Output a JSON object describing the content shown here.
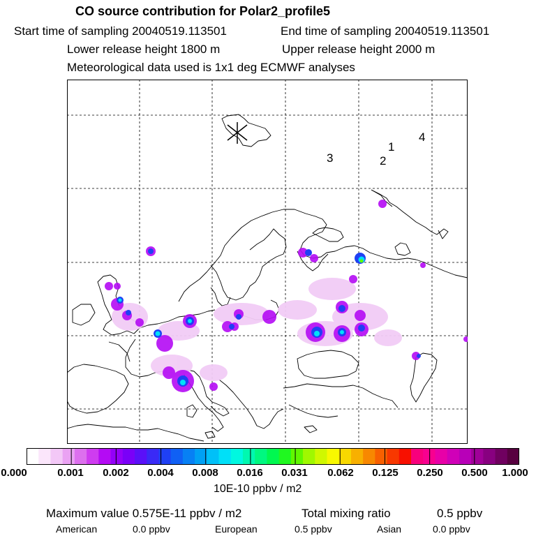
{
  "header": {
    "title": "CO  source contribution for Polar2_profile5",
    "start": "Start time of sampling 20040519.113501",
    "end": "End time of sampling 20040519.113501",
    "lower": "Lower release height 1800 m",
    "upper": "Upper release height 2000 m",
    "meteo": "Meteorological data used is 1x1 deg ECMWF analyses"
  },
  "map": {
    "markers": [
      "1",
      "2",
      "3",
      "4"
    ],
    "symbol": "star-marker"
  },
  "colorbar": {
    "ticks": [
      "0.000",
      "0.001",
      "0.002",
      "0.004",
      "0.008",
      "0.016",
      "0.031",
      "0.062",
      "0.125",
      "0.250",
      "0.500",
      "1.000"
    ],
    "unit": "10E-10 ppbv / m2",
    "colors": [
      "#ffffff",
      "#fbe6fb",
      "#f3c8f7",
      "#eaa2f3",
      "#dd70ee",
      "#cf3cf0",
      "#b40bf4",
      "#9400f8",
      "#7a00f8",
      "#5a10f8",
      "#3a2af6",
      "#1f40f4",
      "#1060f4",
      "#0780f4",
      "#00a0f4",
      "#00c0f8",
      "#00e0f8",
      "#00f8e0",
      "#00f8b0",
      "#00f880",
      "#00f850",
      "#20f820",
      "#60f800",
      "#a0f800",
      "#d0f800",
      "#f8f800",
      "#f8d800",
      "#f8b000",
      "#f88800",
      "#f86000",
      "#f83800",
      "#f81000",
      "#f8007c",
      "#f80090",
      "#e800a8",
      "#d000b8",
      "#b800b8",
      "#a00098",
      "#880080",
      "#700060",
      "#580040"
    ]
  },
  "footer": {
    "max_label": "Maximum value  0.575E-11 ppbv / m2",
    "total_label": "Total mixing ratio",
    "total_value": "0.5 ppbv",
    "american_label": "American",
    "american_value": "0.0 ppbv",
    "european_label": "European",
    "european_value": "0.5 ppbv",
    "asian_label": "Asian",
    "asian_value": "0.0 ppbv"
  }
}
